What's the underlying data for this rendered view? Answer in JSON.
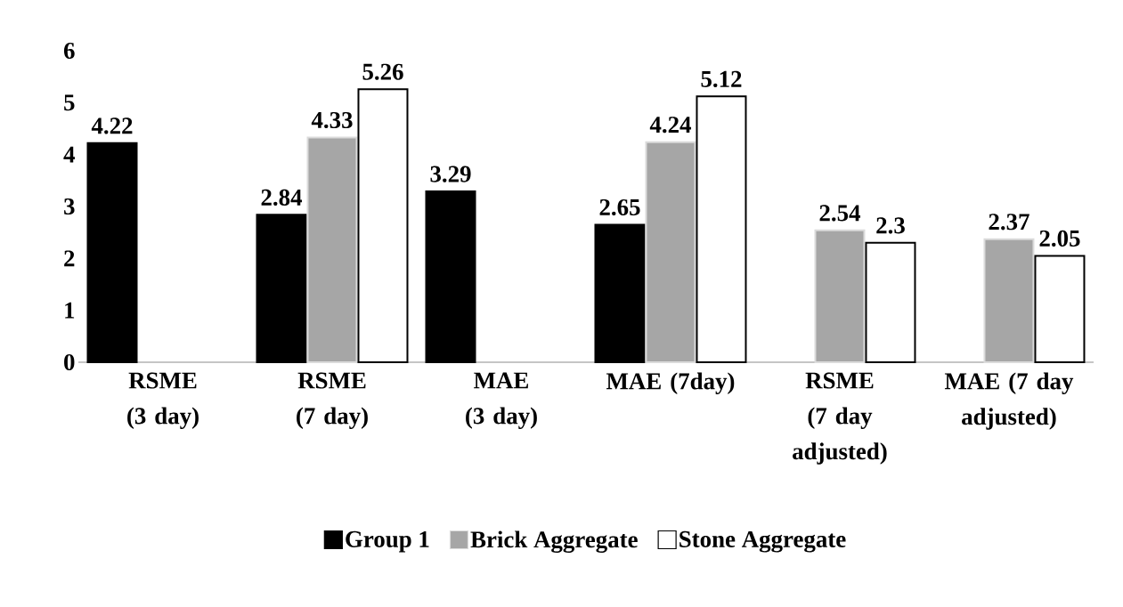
{
  "chart_data": {
    "type": "bar",
    "categories": [
      "RSME (3 day)",
      "RSME (7 day)",
      "MAE (3 day)",
      "MAE (7day)",
      "RSME (7 day adjusted)",
      "MAE (7 day adjusted)"
    ],
    "series": [
      {
        "name": "Group 1",
        "color": "#000000",
        "values": [
          4.22,
          2.84,
          3.29,
          2.65,
          null,
          null
        ]
      },
      {
        "name": "Brick Aggregate",
        "color": "#a6a6a6",
        "values": [
          null,
          4.33,
          null,
          4.24,
          2.54,
          2.37
        ]
      },
      {
        "name": "Stone Aggregate",
        "color": "#ffffff",
        "values": [
          null,
          5.26,
          null,
          5.12,
          2.3,
          2.05
        ]
      }
    ],
    "ylim": [
      0,
      6
    ],
    "yticks": [
      0,
      1,
      2,
      3,
      4,
      5,
      6
    ],
    "data_labels": true,
    "legend": "bottom",
    "grid": false
  }
}
